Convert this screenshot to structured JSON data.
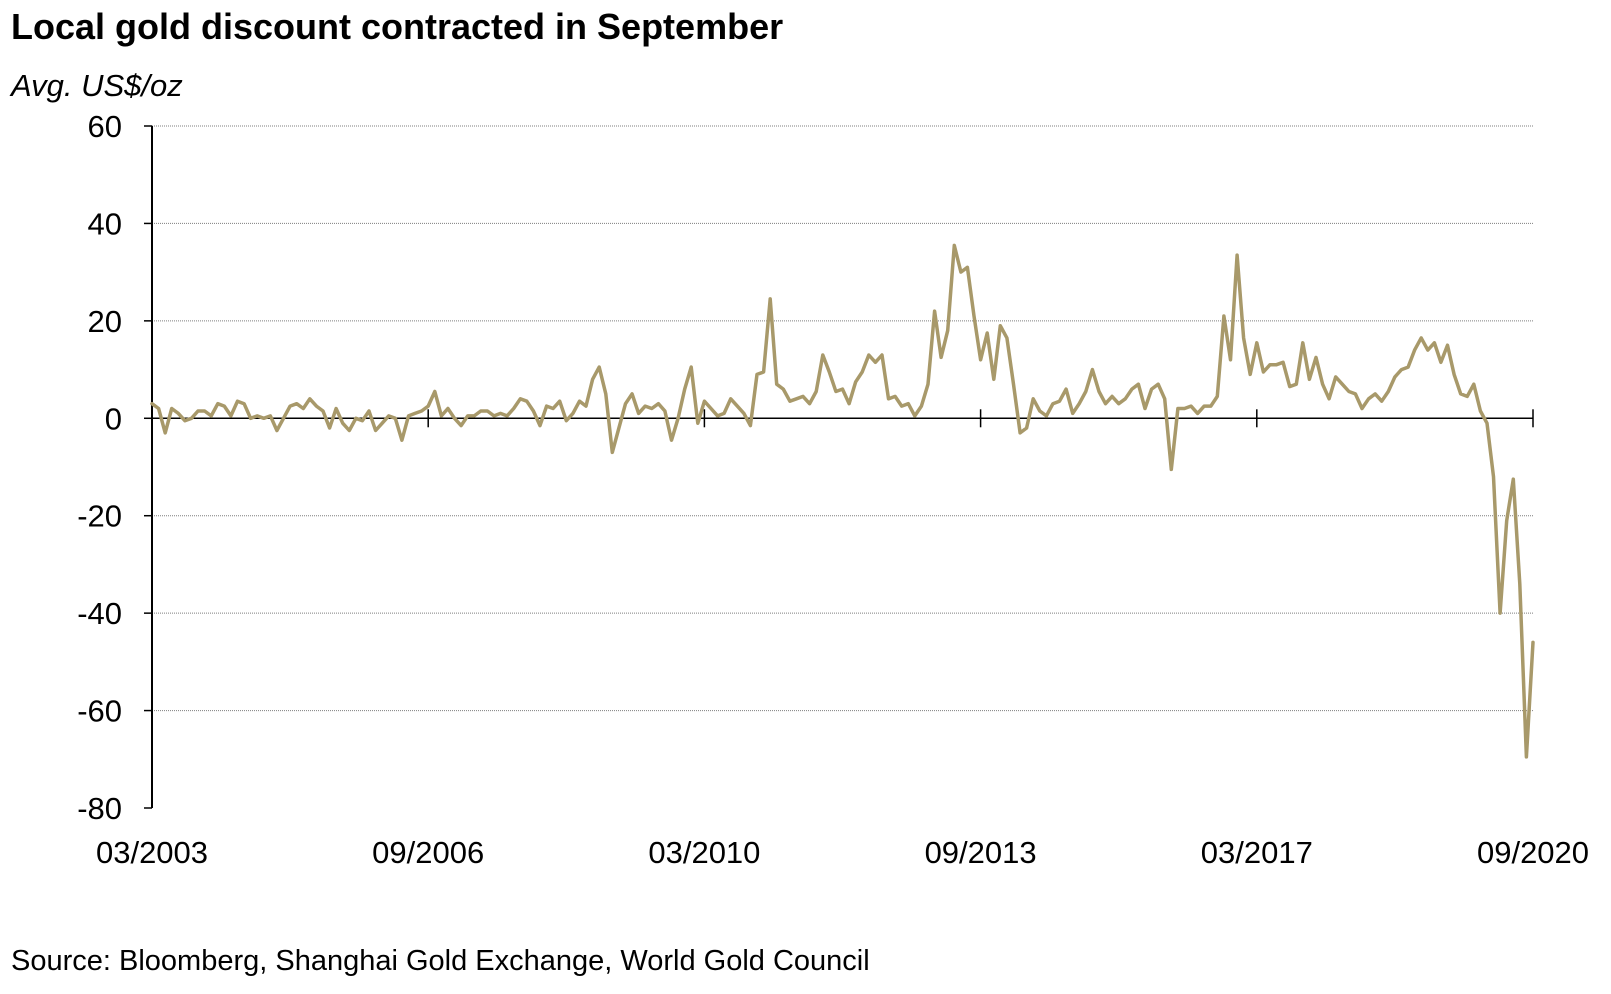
{
  "title": "Local gold discount contracted in September",
  "subtitle": "Avg. US$/oz",
  "source": "Source: Bloomberg, Shanghai Gold Exchange, World Gold Council",
  "colors": {
    "series": "#a8996a",
    "axis": "#000000",
    "grid": "#7f7f7f"
  },
  "chart_data": {
    "type": "line",
    "ylim": [
      -80,
      60
    ],
    "yticks": [
      60,
      40,
      20,
      0,
      -20,
      -40,
      -60,
      -80
    ],
    "xtick_labels": [
      "03/2003",
      "09/2006",
      "03/2010",
      "09/2013",
      "03/2017",
      "09/2020"
    ],
    "x_start": "03/2003",
    "x_end": "09/2020",
    "grid": true,
    "legend": "none",
    "series": [
      {
        "values": [
          3,
          2,
          -3,
          2,
          1,
          -0.5,
          0,
          1.5,
          1.5,
          0.5,
          3,
          2.5,
          0.5,
          3.5,
          3,
          0,
          0.5,
          0,
          0.5,
          -2.5,
          0,
          2.5,
          3,
          2,
          4,
          2.5,
          1.5,
          -2,
          2,
          -1,
          -2.5,
          0,
          -0.5,
          1.5,
          -2.5,
          -1,
          0.5,
          0,
          -4.5,
          0.5,
          1,
          1.5,
          2.5,
          5.5,
          0.5,
          2,
          0,
          -1.5,
          0.5,
          0.5,
          1.5,
          1.5,
          0.5,
          1,
          0.5,
          2,
          4,
          3.5,
          1.5,
          -1.5,
          2.5,
          2,
          3.5,
          -0.5,
          1,
          3.5,
          2.5,
          8,
          10.5,
          5,
          -7,
          -2,
          3,
          5,
          1,
          2.5,
          2,
          3,
          1.5,
          -4.5,
          0,
          6,
          10.5,
          -1,
          3.5,
          2,
          0.5,
          1,
          4,
          2.5,
          1,
          -1.5,
          9,
          9.5,
          24.5,
          7,
          6,
          3.5,
          4,
          4.5,
          3,
          5.5,
          13,
          9.5,
          5.5,
          6,
          3,
          7.5,
          9.5,
          13,
          11.5,
          13,
          4,
          4.5,
          2.5,
          3,
          0.5,
          2.5,
          7,
          22,
          12.5,
          18,
          35.5,
          30,
          31,
          21,
          12,
          17.5,
          8,
          19,
          16.5,
          7,
          -3,
          -2,
          4,
          1.5,
          0.5,
          3,
          3.5,
          6,
          1,
          3,
          5.5,
          10,
          5.5,
          3,
          4.5,
          3,
          4,
          6,
          7,
          2,
          6,
          7,
          4,
          -10.5,
          2,
          2,
          2.5,
          1,
          2.5,
          2.5,
          4.5,
          21,
          12,
          33.5,
          16.5,
          9,
          15.5,
          9.5,
          11,
          11,
          11.5,
          6.5,
          7,
          15.5,
          8,
          12.5,
          7,
          4,
          8.5,
          7,
          5.5,
          5,
          2,
          4,
          5,
          3.5,
          5.5,
          8.5,
          10,
          10.5,
          14,
          16.5,
          14,
          15.5,
          11.5,
          15,
          9,
          5,
          4.5,
          7,
          1.5,
          -1,
          -12,
          -40,
          -21,
          -12.5,
          -34,
          -69.5,
          -46
        ]
      }
    ]
  }
}
